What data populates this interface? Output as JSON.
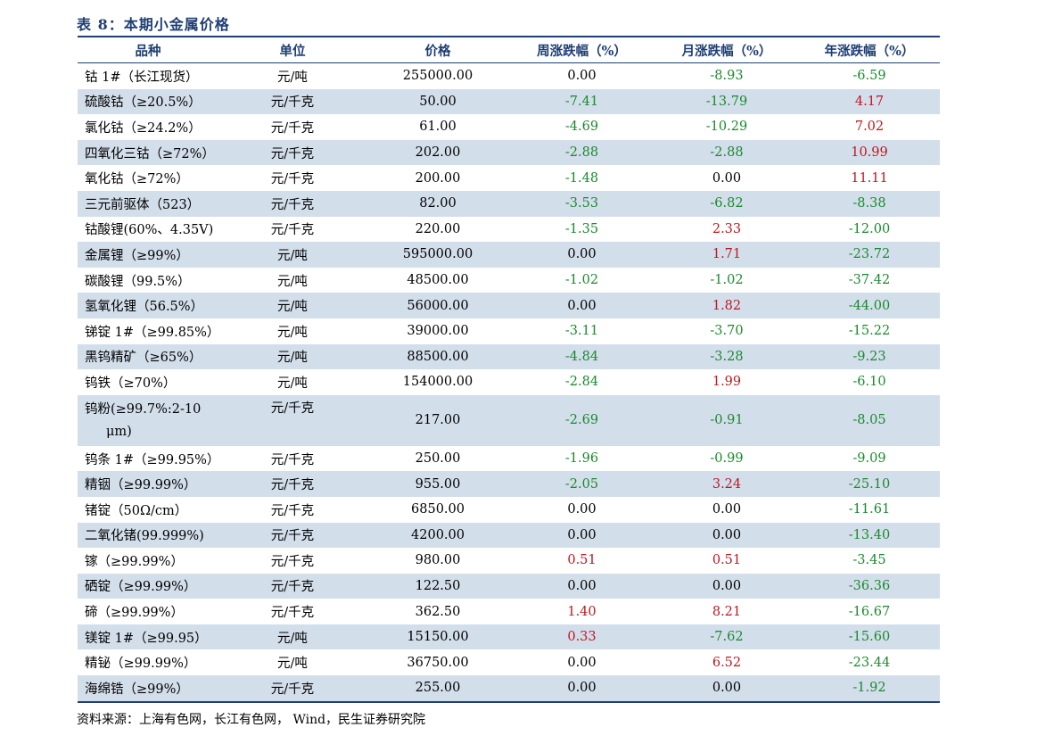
{
  "title": "表 8：本期小金属价格",
  "headers": [
    "品种",
    "单位",
    "价格",
    "周涨跌幅（%）",
    "月涨跌幅（%）",
    "年涨跌幅（%）"
  ],
  "rows": [
    {
      "name": "钴 1#（长江现货）",
      "unit": "元/吨",
      "price": "255000.00",
      "week": "0.00",
      "month": "-8.93",
      "year": "-6.59"
    },
    {
      "name": "硫酸钴（≥20.5%）",
      "unit": "元/千克",
      "price": "50.00",
      "week": "-7.41",
      "month": "-13.79",
      "year": "4.17"
    },
    {
      "name": "氯化钴（≥24.2%）",
      "unit": "元/千克",
      "price": "61.00",
      "week": "-4.69",
      "month": "-10.29",
      "year": "7.02"
    },
    {
      "name": "四氧化三钴（≥72%）",
      "unit": "元/千克",
      "price": "202.00",
      "week": "-2.88",
      "month": "-2.88",
      "year": "10.99"
    },
    {
      "name": "氧化钴（≥72%）",
      "unit": "元/千克",
      "price": "200.00",
      "week": "-1.48",
      "month": "0.00",
      "year": "11.11"
    },
    {
      "name": "三元前驱体（523）",
      "unit": "元/千克",
      "price": "82.00",
      "week": "-3.53",
      "month": "-6.82",
      "year": "-8.38"
    },
    {
      "name": "钴酸锂(60%、4.35V)",
      "unit": "元/千克",
      "price": "220.00",
      "week": "-1.35",
      "month": "2.33",
      "year": "-12.00"
    },
    {
      "name": "金属锂（≥99%）",
      "unit": "元/吨",
      "price": "595000.00",
      "week": "0.00",
      "month": "1.71",
      "year": "-23.72"
    },
    {
      "name": "碳酸锂（99.5%）",
      "unit": "元/吨",
      "price": "48500.00",
      "week": "-1.02",
      "month": "-1.02",
      "year": "-37.42"
    },
    {
      "name": "氢氧化锂（56.5%）",
      "unit": "元/吨",
      "price": "56000.00",
      "week": "0.00",
      "month": "1.82",
      "year": "-44.00"
    },
    {
      "name": "锑锭 1#（≥99.85%）",
      "unit": "元/吨",
      "price": "39000.00",
      "week": "-3.11",
      "month": "-3.70",
      "year": "-15.22"
    },
    {
      "name": "黑钨精矿（≥65%）",
      "unit": "元/吨",
      "price": "88500.00",
      "week": "-4.84",
      "month": "-3.28",
      "year": "-9.23"
    },
    {
      "name": "钨铁（≥70%）",
      "unit": "元/吨",
      "price": "154000.00",
      "week": "-2.84",
      "month": "1.99",
      "year": "-6.10"
    },
    {
      "name_line1": "钨粉(≥99.7%:2-10",
      "name_line2": "μm)",
      "unit": "元/千克",
      "price": "217.00",
      "week": "-2.69",
      "month": "-0.91",
      "year": "-8.05"
    },
    {
      "name": "钨条 1#（≥99.95%）",
      "unit": "元/千克",
      "price": "250.00",
      "week": "-1.96",
      "month": "-0.99",
      "year": "-9.09"
    },
    {
      "name": "精铟（≥99.99%）",
      "unit": "元/千克",
      "price": "955.00",
      "week": "-2.05",
      "month": "3.24",
      "year": "-25.10"
    },
    {
      "name": "锗锭（50Ω/cm）",
      "unit": "元/千克",
      "price": "6850.00",
      "week": "0.00",
      "month": "0.00",
      "year": "-11.61"
    },
    {
      "name": "二氧化锗(99.999%)",
      "unit": "元/千克",
      "price": "4200.00",
      "week": "0.00",
      "month": "0.00",
      "year": "-13.40"
    },
    {
      "name": "镓（≥99.99%）",
      "unit": "元/千克",
      "price": "980.00",
      "week": "0.51",
      "month": "0.51",
      "year": "-3.45"
    },
    {
      "name": "硒锭（≥99.99%）",
      "unit": "元/千克",
      "price": "122.50",
      "week": "0.00",
      "month": "0.00",
      "year": "-36.36"
    },
    {
      "name": "碲（≥99.99%）",
      "unit": "元/千克",
      "price": "362.50",
      "week": "1.40",
      "month": "8.21",
      "year": "-16.67"
    },
    {
      "name": "镁锭 1#（≥99.95）",
      "unit": "元/吨",
      "price": "15150.00",
      "week": "0.33",
      "month": "-7.62",
      "year": "-15.60"
    },
    {
      "name": "精铋（≥99.99%）",
      "unit": "元/吨",
      "price": "36750.00",
      "week": "0.00",
      "month": "6.52",
      "year": "-23.44"
    },
    {
      "name": "海绵锆（≥99%）",
      "unit": "元/千克",
      "price": "255.00",
      "week": "0.00",
      "month": "0.00",
      "year": "-1.92"
    }
  ],
  "source": "资料来源：上海有色网，长江有色网， Wind，民生证券研究院",
  "colors": {
    "header": "#1f3e74",
    "stripe": "#d3deeb",
    "negative": "#1a8a2c",
    "positive": "#c0161f"
  }
}
